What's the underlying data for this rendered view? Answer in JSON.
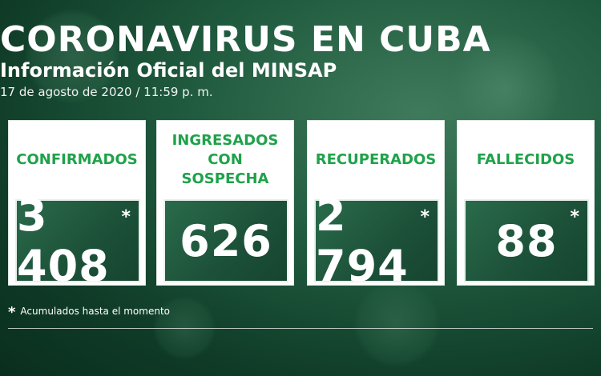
{
  "header": {
    "title": "CORONAVIRUS EN CUBA",
    "subtitle": "Información Oficial del MINSAP",
    "date": "17 de agosto de 2020 / 11:59 p. m."
  },
  "cards": [
    {
      "label": "CONFIRMADOS",
      "value": "3 408",
      "asterisk": "*"
    },
    {
      "label": "INGRESADOS CON SOSPECHA",
      "value": "626",
      "asterisk": ""
    },
    {
      "label": "RECUPERADOS",
      "value": "2 794",
      "asterisk": "*"
    },
    {
      "label": "FALLECIDOS",
      "value": "88",
      "asterisk": "*"
    }
  ],
  "footnote": {
    "star": "*",
    "text": "Acumulados hasta el momento"
  },
  "colors": {
    "label_green": "#1fa24a",
    "background_green": "#1f5a3e"
  }
}
